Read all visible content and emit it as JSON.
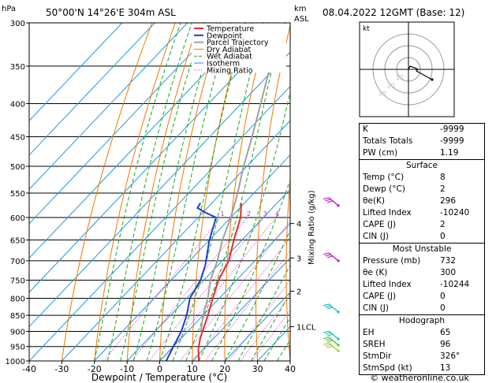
{
  "header": {
    "left_unit": "hPa",
    "location": "50°00'N 14°26'E 304m ASL",
    "km_label": "km",
    "asl_label": "ASL",
    "date": "08.04.2022 12GMT (Base: 12)"
  },
  "footer": {
    "copyright": "© weatheronline.co.uk"
  },
  "chart_data": {
    "type": "skew-t",
    "xlabel": "Dewpoint / Temperature (°C)",
    "x_ticks": [
      -40,
      -30,
      -20,
      -10,
      0,
      10,
      20,
      30,
      40
    ],
    "x_tick_labels": [
      "-40",
      "-30",
      "-20",
      "-10",
      "0",
      "10",
      "20",
      "30",
      "40"
    ],
    "pressure_levels": [
      300,
      350,
      400,
      450,
      500,
      550,
      600,
      650,
      700,
      750,
      800,
      850,
      900,
      950,
      1000
    ],
    "pressure_labels": [
      "300",
      "350",
      "400",
      "450",
      "500",
      "550",
      "600",
      "650",
      "700",
      "750",
      "800",
      "850",
      "900",
      "950",
      "1000"
    ],
    "km_ticks": [
      {
        "label": "4",
        "p": 613
      },
      {
        "label": "3",
        "p": 693
      },
      {
        "label": "2",
        "p": 780
      },
      {
        "label": "1LCL",
        "p": 885
      }
    ],
    "mixing_ratio_label": "Mixing Ratio (g/kg)",
    "mixing_ratio_values": [
      "1",
      "2",
      "3",
      "4",
      "6",
      "8",
      "10",
      "16",
      "20",
      "25"
    ],
    "legend": [
      "Temperature",
      "Dewpoint",
      "Parcel Trajectory",
      "Dry Adiabat",
      "Wet Adiabat",
      "Isotherm",
      "Mixing Ratio"
    ],
    "colors": {
      "temperature": "#e8292b",
      "dewpoint": "#1e3fcf",
      "parcel": "#a0a0a0",
      "dry_adiabat": "#f07800",
      "wet_adiabat": "#1aa51a",
      "isotherm": "#1e9bd7",
      "mixing_ratio": "#d020d0"
    },
    "temperature": [
      [
        1000,
        12
      ],
      [
        960,
        8.5
      ],
      [
        925,
        6
      ],
      [
        900,
        4.5
      ],
      [
        850,
        1.5
      ],
      [
        800,
        -2
      ],
      [
        750,
        -5.5
      ],
      [
        700,
        -8
      ],
      [
        650,
        -12.5
      ],
      [
        600,
        -17
      ],
      [
        570,
        -21
      ]
    ],
    "dewpoint": [
      [
        1000,
        2
      ],
      [
        950,
        0
      ],
      [
        900,
        -2
      ],
      [
        850,
        -5
      ],
      [
        800,
        -9
      ],
      [
        750,
        -11
      ],
      [
        710,
        -14
      ],
      [
        700,
        -15
      ],
      [
        650,
        -20
      ],
      [
        600,
        -24.5
      ],
      [
        590,
        -29
      ],
      [
        580,
        -33
      ],
      [
        570,
        -33.5
      ]
    ],
    "parcel": [
      [
        900,
        4
      ],
      [
        850,
        0
      ],
      [
        800,
        -3.5
      ],
      [
        750,
        -8
      ],
      [
        700,
        -11.5
      ],
      [
        650,
        -16
      ],
      [
        600,
        -20
      ],
      [
        550,
        -25
      ],
      [
        500,
        -31
      ],
      [
        450,
        -37
      ],
      [
        400,
        -44
      ],
      [
        350,
        -52
      ],
      [
        300,
        -60
      ]
    ],
    "wind_barb_color": "#20c0c0"
  },
  "hodograph": {
    "label": "kt",
    "ring_labels": [
      "10",
      "20",
      "30"
    ]
  },
  "indices": [
    {
      "label": "K",
      "value": "-9999"
    },
    {
      "label": "Totals Totals",
      "value": "-9999"
    },
    {
      "label": "PW (cm)",
      "value": "1.19"
    }
  ],
  "surface": {
    "title": "Surface",
    "rows": [
      {
        "label": "Temp (°C)",
        "value": "8"
      },
      {
        "label": "Dewp (°C)",
        "value": "2"
      },
      {
        "label": "θe(K)",
        "value": "296"
      },
      {
        "label": "Lifted Index",
        "value": "-10240"
      },
      {
        "label": "CAPE (J)",
        "value": "2"
      },
      {
        "label": "CIN (J)",
        "value": "0"
      }
    ]
  },
  "most_unstable": {
    "title": "Most Unstable",
    "rows": [
      {
        "label": "Pressure (mb)",
        "value": "732"
      },
      {
        "label": "θe (K)",
        "value": "300"
      },
      {
        "label": "Lifted Index",
        "value": "-10244"
      },
      {
        "label": "CAPE (J)",
        "value": "0"
      },
      {
        "label": "CIN (J)",
        "value": "0"
      }
    ]
  },
  "hodograph_table": {
    "title": "Hodograph",
    "rows": [
      {
        "label": "EH",
        "value": "65"
      },
      {
        "label": "SREH",
        "value": "96"
      },
      {
        "label": "StmDir",
        "value": "326°"
      },
      {
        "label": "StmSpd (kt)",
        "value": "13"
      }
    ]
  }
}
